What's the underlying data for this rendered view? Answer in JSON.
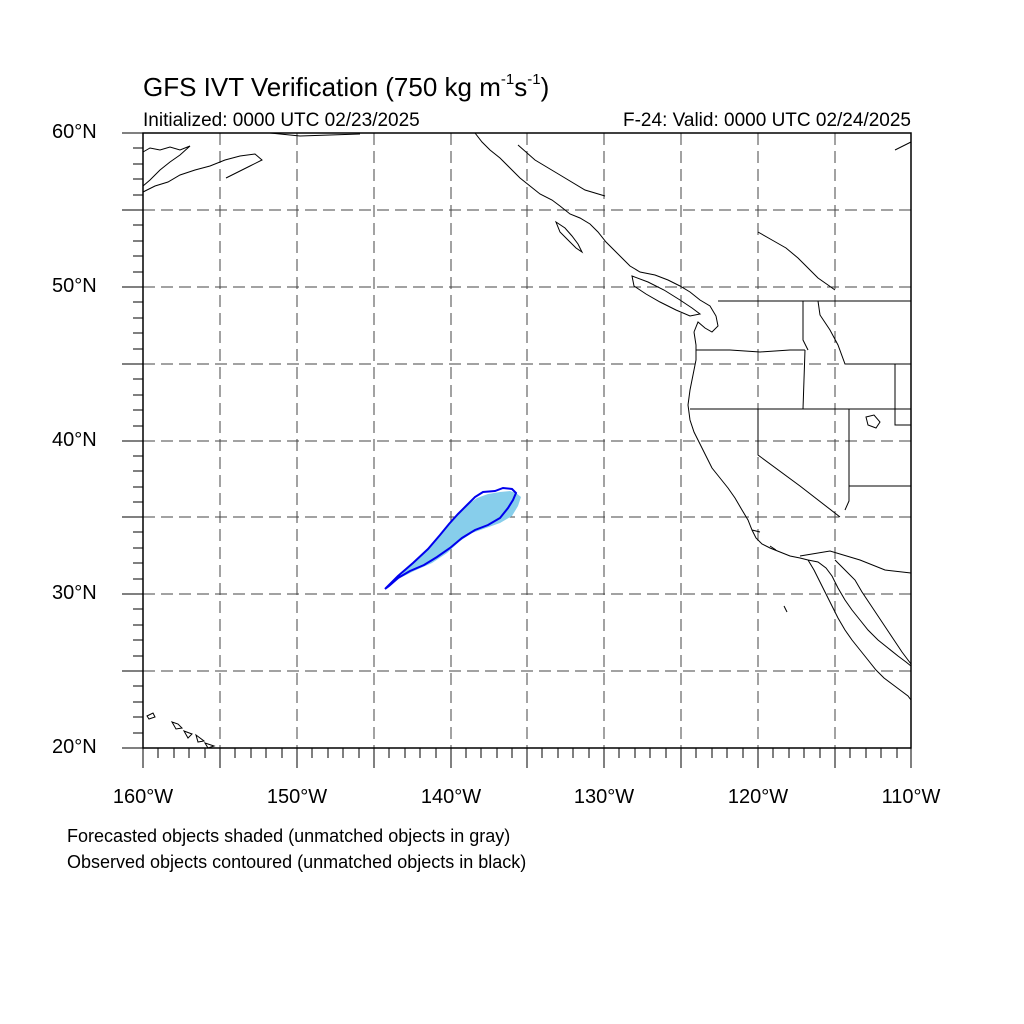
{
  "title": {
    "prefix": "GFS IVT Verification (750 kg m",
    "sup1": "-1",
    "mid": "s",
    "sup2": "-1",
    "suffix": ")"
  },
  "subtitle_left": "Initialized: 0000 UTC 02/23/2025",
  "subtitle_right": "F-24: Valid: 0000 UTC 02/24/2025",
  "lat_labels": [
    "60°N",
    "50°N",
    "40°N",
    "30°N",
    "20°N"
  ],
  "lon_labels": [
    "160°W",
    "150°W",
    "140°W",
    "130°W",
    "120°W",
    "110°W"
  ],
  "footnotes": [
    "Forecasted objects shaded (unmatched objects in gray)",
    "Observed objects contoured (unmatched objects in black)"
  ],
  "map": {
    "lon_range": [
      -160,
      -110
    ],
    "lat_range": [
      20,
      60
    ],
    "colors": {
      "forecast_fill": "#87ceeb",
      "observed_contour": "#0000ee",
      "coastline": "#000000",
      "grid": "#444444"
    }
  }
}
